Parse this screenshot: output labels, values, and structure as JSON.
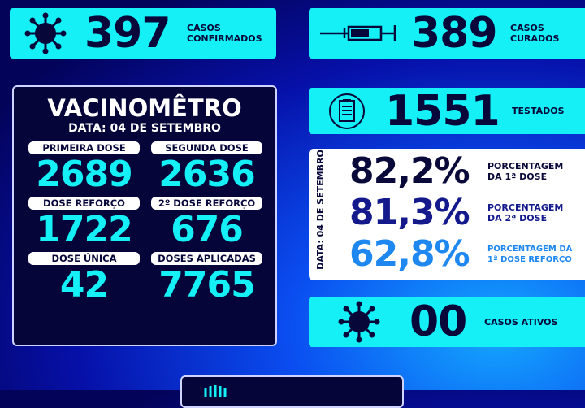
{
  "confirmed": {
    "value": "397",
    "label1": "CASOS",
    "label2": "CONFIRMADOS",
    "icon": "virus-icon"
  },
  "cured": {
    "value": "389",
    "label1": "CASOS",
    "label2": "CURADOS",
    "icon": "syringe-icon"
  },
  "tested": {
    "value": "1551",
    "label": "TESTADOS",
    "icon": "clipboard-icon"
  },
  "active": {
    "value": "00",
    "label": "CASOS ATIVOS",
    "icon": "virus-icon"
  },
  "vacinometro": {
    "title": "VACINOMÊTRO",
    "date": "DATA: 04 DE SETEMBRO",
    "items": [
      {
        "label": "PRIMEIRA DOSE",
        "value": "2689"
      },
      {
        "label": "SEGUNDA DOSE",
        "value": "2636"
      },
      {
        "label": "DOSE REFORÇO",
        "value": "1722"
      },
      {
        "label": "2º DOSE REFORÇO",
        "value": "676"
      },
      {
        "label": "DOSE ÚNICA",
        "value": "42"
      },
      {
        "label": "DOSES APLICADAS",
        "value": "7765"
      }
    ]
  },
  "percentages": {
    "date": "DATA: 04 DE SETEMBRO",
    "items": [
      {
        "value": "82,2%",
        "label1": "PORCENTAGEM",
        "label2": "DA 1ª DOSE",
        "color": "#0a0a3a"
      },
      {
        "value": "81,3%",
        "label1": "PORCENTAGEM",
        "label2": "DA 2ª DOSE",
        "color": "#141a8c"
      },
      {
        "value": "62,8%",
        "label1": "PORCENTAGEM DA",
        "label2": "1ª DOSE REFORÇO",
        "color": "#1e88f0"
      }
    ]
  },
  "colors": {
    "cyan": "#14f0f5",
    "navy": "#05053a"
  }
}
